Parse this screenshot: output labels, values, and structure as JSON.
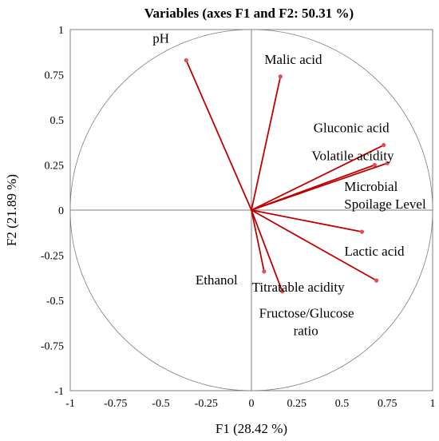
{
  "chart_data": {
    "type": "scatter",
    "subtype": "pca-correlation-circle",
    "title": "Variables (axes F1 and F2: 50.31 %)",
    "xlabel": "F1 (28.42 %)",
    "ylabel": "F2 (21.89 %)",
    "xlim": [
      -1,
      1
    ],
    "ylim": [
      -1,
      1
    ],
    "x_ticks": [
      "-1",
      "-0.75",
      "-0.5",
      "-0.25",
      "0",
      "0.25",
      "0.5",
      "0.75",
      "1"
    ],
    "y_ticks": [
      "1",
      "0.75",
      "0.5",
      "0.25",
      "0",
      "-0.25",
      "-0.5",
      "-0.75",
      "-1"
    ],
    "unit_circle": true,
    "vector_color": "#c00000",
    "point_color": "#e05050",
    "variables": [
      {
        "label_lines": [
          "pH"
        ],
        "x": -0.36,
        "y": 0.83
      },
      {
        "label_lines": [
          "Malic acid"
        ],
        "x": 0.16,
        "y": 0.74
      },
      {
        "label_lines": [
          "Gluconic acid"
        ],
        "x": 0.73,
        "y": 0.36
      },
      {
        "label_lines": [
          "Volatile acidity"
        ],
        "x": 0.68,
        "y": 0.25
      },
      {
        "label_lines": [
          "Microbial",
          "Spoilage Level"
        ],
        "x": 0.75,
        "y": 0.26
      },
      {
        "label_lines": [
          "Lactic acid"
        ],
        "x": 0.61,
        "y": -0.12
      },
      {
        "label_lines": [
          "Titratable acidity"
        ],
        "x": 0.69,
        "y": -0.39
      },
      {
        "label_lines": [
          "Fructose/Glucose",
          "ratio"
        ],
        "x": 0.17,
        "y": -0.45
      },
      {
        "label_lines": [
          "Ethanol"
        ],
        "x": 0.07,
        "y": -0.34
      }
    ]
  }
}
